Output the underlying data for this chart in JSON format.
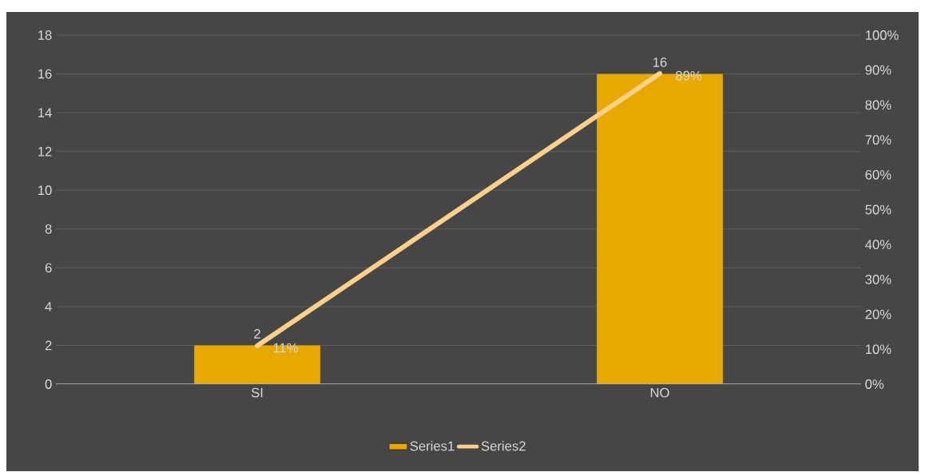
{
  "chart_data": {
    "type": "bar",
    "categories": [
      "SI",
      "NO"
    ],
    "series": [
      {
        "name": "Series1",
        "color": "#e8a800",
        "values": [
          2,
          16
        ],
        "value_labels": [
          "2",
          "16"
        ]
      },
      {
        "name": "Series2",
        "type": "line",
        "axis": "y2",
        "color": "#ffd08a",
        "values": [
          11,
          89
        ],
        "value_labels": [
          "11%",
          "89%"
        ]
      }
    ],
    "ylim": [
      0,
      18
    ],
    "yticks": [
      0,
      2,
      4,
      6,
      8,
      10,
      12,
      14,
      16,
      18
    ],
    "y2lim": [
      0,
      100
    ],
    "y2ticks": [
      {
        "value": 0,
        "label": "0%"
      },
      {
        "value": 10,
        "label": "10%"
      },
      {
        "value": 20,
        "label": "20%"
      },
      {
        "value": 30,
        "label": "30%"
      },
      {
        "value": 40,
        "label": "40%"
      },
      {
        "value": 50,
        "label": "50%"
      },
      {
        "value": 60,
        "label": "60%"
      },
      {
        "value": 70,
        "label": "70%"
      },
      {
        "value": 80,
        "label": "80%"
      },
      {
        "value": 90,
        "label": "90%"
      },
      {
        "value": 100,
        "label": "100%"
      }
    ],
    "grid": "y",
    "legend": "bottom"
  }
}
